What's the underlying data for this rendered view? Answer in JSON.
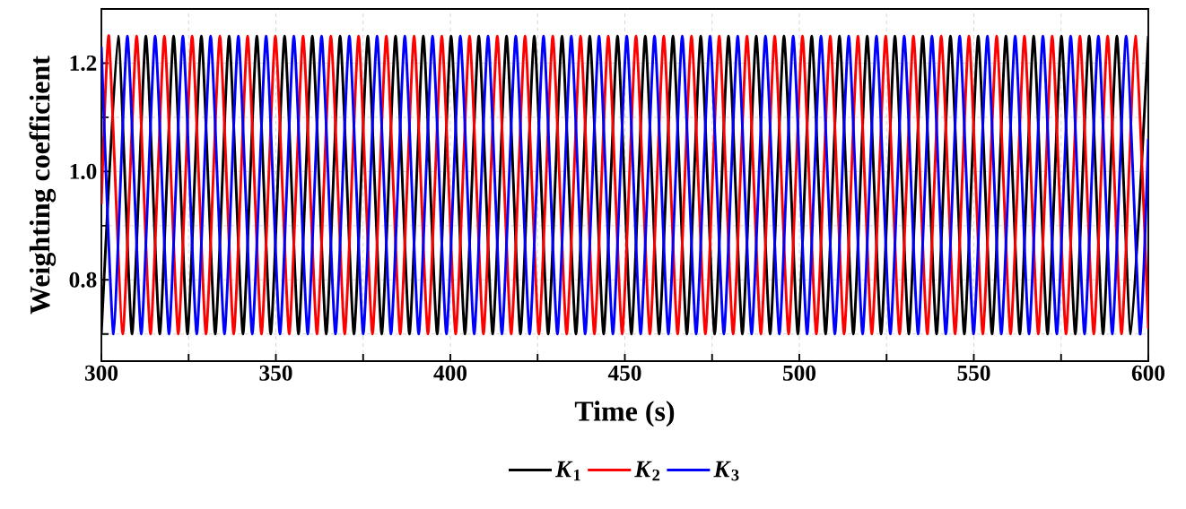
{
  "chart_data": {
    "type": "line",
    "xlabel": "Time (s)",
    "ylabel": "Weighting coefficient",
    "xlim": [
      300,
      600
    ],
    "ylim": [
      0.65,
      1.3
    ],
    "xticks": [
      300,
      {
        "value": 325,
        "label": null
      },
      350,
      {
        "value": 375,
        "label": null
      },
      400,
      {
        "value": 425,
        "label": null
      },
      450,
      {
        "value": 475,
        "label": null
      },
      500,
      {
        "value": 525,
        "label": null
      },
      550,
      {
        "value": 575,
        "label": null
      },
      600
    ],
    "yticks": [
      {
        "value": 0.7,
        "label": null
      },
      {
        "value": 0.8,
        "label": "0.8"
      },
      {
        "value": 0.9,
        "label": null
      },
      {
        "value": 1.0,
        "label": "1.0"
      },
      {
        "value": 1.1,
        "label": null
      },
      {
        "value": 1.2,
        "label": "1.2"
      }
    ],
    "grid": true,
    "legend": "bottom",
    "series": [
      {
        "name": "*K*$_{1}$",
        "color": "#000000",
        "x": [
          300,
          304.8,
          308.78,
          312.75,
          316.73,
          320.7,
          324.68,
          328.65,
          332.63,
          336.6,
          340.58,
          344.55,
          348.53,
          352.5,
          356.48,
          360.45,
          364.43,
          368.4,
          372.38,
          376.35,
          380.33,
          384.3,
          388.28,
          392.25,
          396.23,
          400.2,
          404.18,
          408.15,
          412.13,
          416.1,
          420.08,
          424.05,
          428.03,
          432.0,
          435.98,
          439.95,
          443.93,
          447.9,
          451.88,
          455.85,
          459.83,
          463.8,
          467.78,
          471.75,
          475.73,
          479.7,
          483.68,
          487.65,
          491.63,
          495.6,
          499.58,
          503.55,
          507.53,
          511.5,
          515.48,
          519.45,
          523.43,
          527.4,
          531.38,
          535.35,
          539.33,
          543.3,
          547.28,
          551.25,
          555.23,
          559.2,
          563.18,
          567.15,
          571.13,
          575.1,
          579.08,
          583.05,
          587.03,
          591.0,
          594.98,
          600
        ],
        "values": [
          0.7,
          1.25,
          0.7,
          1.25,
          0.7,
          1.25,
          0.7,
          1.25,
          0.7,
          1.25,
          0.7,
          1.25,
          0.7,
          1.25,
          0.7,
          1.25,
          0.7,
          1.25,
          0.7,
          1.25,
          0.7,
          1.25,
          0.7,
          1.25,
          0.7,
          1.25,
          0.7,
          1.25,
          0.7,
          1.25,
          0.7,
          1.25,
          0.7,
          1.25,
          0.7,
          1.25,
          0.7,
          1.25,
          0.7,
          1.25,
          0.7,
          1.25,
          0.7,
          1.25,
          0.7,
          1.25,
          0.7,
          1.25,
          0.7,
          1.25,
          0.7,
          1.25,
          0.7,
          1.25,
          0.7,
          1.25,
          0.7,
          1.25,
          0.7,
          1.25,
          0.7,
          1.25,
          0.7,
          1.25,
          0.7,
          1.25,
          0.7,
          1.25,
          0.7,
          1.25,
          0.7,
          1.25,
          0.7,
          1.25,
          0.7,
          1.25
        ]
      },
      {
        "name": "*K*$_{2}$",
        "color": "#ff0000",
        "x": [
          300,
          302.15,
          306.13,
          310.1,
          314.08,
          318.05,
          322.03,
          326.0,
          329.98,
          333.95,
          337.93,
          341.9,
          345.88,
          349.85,
          353.83,
          357.8,
          361.78,
          365.75,
          369.73,
          373.7,
          377.68,
          381.65,
          385.63,
          389.6,
          393.58,
          397.55,
          401.53,
          405.5,
          409.48,
          413.45,
          417.43,
          421.4,
          425.38,
          429.35,
          433.33,
          437.3,
          441.28,
          445.25,
          449.23,
          453.2,
          457.18,
          461.15,
          465.13,
          469.1,
          473.08,
          477.05,
          481.03,
          485.0,
          488.98,
          492.95,
          496.93,
          500.9,
          504.88,
          508.85,
          512.83,
          516.8,
          520.78,
          524.75,
          528.73,
          532.7,
          536.68,
          540.65,
          544.63,
          548.6,
          552.58,
          556.55,
          560.53,
          564.5,
          568.48,
          572.45,
          576.43,
          580.4,
          584.38,
          588.35,
          592.33,
          596.3,
          600
        ],
        "values": [
          0.94,
          1.25,
          0.7,
          1.25,
          0.7,
          1.25,
          0.7,
          1.25,
          0.7,
          1.25,
          0.7,
          1.25,
          0.7,
          1.25,
          0.7,
          1.25,
          0.7,
          1.25,
          0.7,
          1.25,
          0.7,
          1.25,
          0.7,
          1.25,
          0.7,
          1.25,
          0.7,
          1.25,
          0.7,
          1.25,
          0.7,
          1.25,
          0.7,
          1.25,
          0.7,
          1.25,
          0.7,
          1.25,
          0.7,
          1.25,
          0.7,
          1.25,
          0.7,
          1.25,
          0.7,
          1.25,
          0.7,
          1.25,
          0.7,
          1.25,
          0.7,
          1.25,
          0.7,
          1.25,
          0.7,
          1.25,
          0.7,
          1.25,
          0.7,
          1.25,
          0.7,
          1.25,
          0.7,
          1.25,
          0.7,
          1.25,
          0.7,
          1.25,
          0.7,
          1.25,
          0.7,
          1.25,
          0.7,
          1.25,
          0.7,
          1.25,
          0.71
        ]
      },
      {
        "name": "*K*$_{3}$",
        "color": "#0000ff",
        "x": [
          300,
          303.48,
          307.45,
          311.43,
          315.4,
          319.38,
          323.35,
          327.33,
          331.3,
          335.28,
          339.25,
          343.23,
          347.2,
          351.18,
          355.15,
          359.13,
          363.1,
          367.08,
          371.05,
          375.03,
          379.0,
          382.98,
          386.95,
          390.93,
          394.9,
          398.88,
          402.85,
          406.83,
          410.8,
          414.78,
          418.75,
          422.73,
          426.7,
          430.68,
          434.65,
          438.63,
          442.6,
          446.58,
          450.55,
          454.53,
          458.5,
          462.48,
          466.45,
          470.43,
          474.4,
          478.38,
          482.35,
          486.33,
          490.3,
          494.28,
          498.25,
          502.23,
          506.2,
          510.18,
          514.15,
          518.13,
          522.1,
          526.08,
          530.05,
          534.03,
          538.0,
          541.98,
          545.95,
          549.93,
          553.9,
          557.88,
          561.85,
          565.83,
          569.8,
          573.78,
          577.75,
          581.73,
          585.7,
          589.68,
          593.65,
          597.63,
          600
        ],
        "values": [
          1.23,
          0.7,
          1.25,
          0.7,
          1.25,
          0.7,
          1.25,
          0.7,
          1.25,
          0.7,
          1.25,
          0.7,
          1.25,
          0.7,
          1.25,
          0.7,
          1.25,
          0.7,
          1.25,
          0.7,
          1.25,
          0.7,
          1.25,
          0.7,
          1.25,
          0.7,
          1.25,
          0.7,
          1.25,
          0.7,
          1.25,
          0.7,
          1.25,
          0.7,
          1.25,
          0.7,
          1.25,
          0.7,
          1.25,
          0.7,
          1.25,
          0.7,
          1.25,
          0.7,
          1.25,
          0.7,
          1.25,
          0.7,
          1.25,
          0.7,
          1.25,
          0.7,
          1.25,
          0.7,
          1.25,
          0.7,
          1.25,
          0.7,
          1.25,
          0.7,
          1.25,
          0.7,
          1.25,
          0.7,
          1.25,
          0.7,
          1.25,
          0.7,
          1.25,
          0.7,
          1.25,
          0.7,
          1.25,
          0.7,
          1.25,
          0.7,
          1.06
        ]
      }
    ]
  }
}
